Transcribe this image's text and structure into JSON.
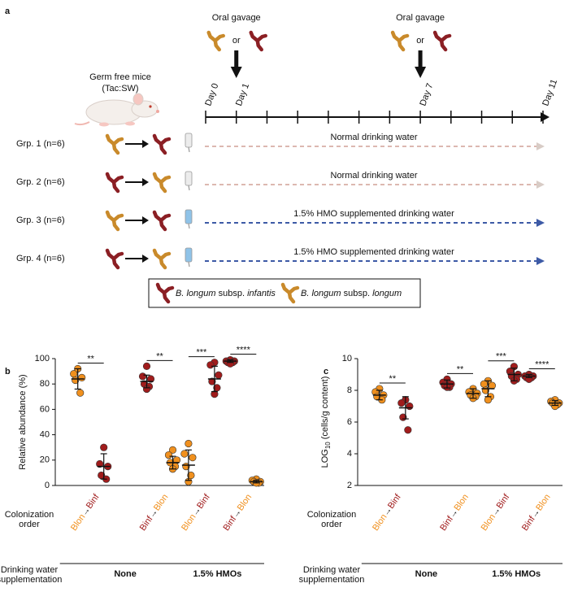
{
  "schematic": {
    "panel_label": "a",
    "colors": [
      "#c98a2b",
      "#8b1f24"
    ],
    "mouse_label": [
      "Germ free mice",
      "(Tac:SW)"
    ],
    "timeline": {
      "range": [
        0,
        11
      ],
      "ticks": [
        0,
        1,
        2,
        3,
        4,
        5,
        6,
        7,
        8,
        9,
        10,
        11
      ],
      "days": [
        {
          "value": 0,
          "label": "Day 0"
        },
        {
          "value": 1,
          "label": "Day 1"
        },
        {
          "value": 7,
          "label": "Day 7"
        },
        {
          "value": 11,
          "label": "Day 11"
        }
      ]
    },
    "gavage": [
      {
        "label": "Oral gavage",
        "or": "or",
        "day": 1
      },
      {
        "label": "Oral gavage",
        "or": "or",
        "day": 7
      }
    ],
    "groups": [
      {
        "label": "Grp. 1 (n=6)",
        "sequence": [
          "#c98a2b",
          "#8b1f24"
        ],
        "water": "Normal drinking water",
        "line_color": "#dcb8b0",
        "head_color": "#d8ccc6",
        "bottle_color": "#ececec"
      },
      {
        "label": "Grp. 2 (n=6)",
        "sequence": [
          "#8b1f24",
          "#c98a2b"
        ],
        "water": "Normal drinking water",
        "line_color": "#dcb8b0",
        "head_color": "#d8ccc6",
        "bottle_color": "#ececec"
      },
      {
        "label": "Grp. 3 (n=6)",
        "sequence": [
          "#c98a2b",
          "#8b1f24"
        ],
        "water": "1.5% HMO supplemented drinking water",
        "line_color": "#3d5aa6",
        "head_color": "#3d5aa6",
        "bottle_color": "#8fc3e8"
      },
      {
        "label": "Grp. 4 (n=6)",
        "sequence": [
          "#8b1f24",
          "#c98a2b"
        ],
        "water": "1.5% HMO supplemented drinking water",
        "line_color": "#3d5aa6",
        "head_color": "#3d5aa6",
        "bottle_color": "#8fc3e8"
      }
    ],
    "legend": [
      {
        "color": "#8b1f24",
        "text": [
          "B. longum",
          "subsp.",
          "infantis"
        ]
      },
      {
        "color": "#c98a2b",
        "text": [
          "B. longum",
          "subsp.",
          "longum"
        ]
      }
    ]
  },
  "chart_data": [
    {
      "type": "dot",
      "panel_label": "b",
      "ylabel": {
        "text": "Relative abundance (%)"
      },
      "ylim": [
        0,
        100
      ],
      "yticks": [
        0,
        20,
        40,
        60,
        80,
        100
      ],
      "rows": [
        [
          "Colonization",
          "order"
        ],
        [
          "Drinking water",
          "supplementation"
        ]
      ],
      "treatments": [
        {
          "label": "None",
          "color": "#9a9a9a",
          "groups": [
            {
              "order": [
                "Blon",
                "→",
                "Binf"
              ],
              "significance": "**",
              "columns": [
                {
                  "color": "#f0901e",
                  "values": [
                    92,
                    88,
                    85,
                    83,
                    73
                  ],
                  "mean": 84,
                  "sd": 8
                },
                {
                  "color": "#a01c1c",
                  "values": [
                    30,
                    17,
                    15,
                    8,
                    5
                  ],
                  "mean": 15,
                  "sd": 10
                }
              ]
            },
            {
              "order": [
                "Binf",
                "→",
                "Blon"
              ],
              "significance": "**",
              "columns": [
                {
                  "color": "#a01c1c",
                  "values": [
                    94,
                    86,
                    84,
                    80,
                    78,
                    76
                  ],
                  "mean": 82,
                  "sd": 5
                },
                {
                  "color": "#f0901e",
                  "values": [
                    28,
                    24,
                    20,
                    18,
                    15,
                    13
                  ],
                  "mean": 18,
                  "sd": 5
                }
              ]
            }
          ]
        },
        {
          "label": "1.5% HMOs",
          "color": "#7b7fe8",
          "groups": [
            {
              "order": [
                "Blon",
                "→",
                "Binf"
              ],
              "significance": "***",
              "columns": [
                {
                  "color": "#f0901e",
                  "values": [
                    33,
                    25,
                    22,
                    15,
                    8,
                    3
                  ],
                  "mean": 16,
                  "sd": 12
                },
                {
                  "color": "#a01c1c",
                  "values": [
                    97,
                    95,
                    87,
                    82,
                    77,
                    72
                  ],
                  "mean": 84,
                  "sd": 10
                }
              ]
            },
            {
              "order": [
                "Binf",
                "→",
                "Blon"
              ],
              "significance": "****",
              "columns": [
                {
                  "color": "#a01c1c",
                  "values": [
                    99,
                    98,
                    98,
                    97,
                    97,
                    96
                  ],
                  "mean": 98,
                  "sd": 1
                },
                {
                  "color": "#f0901e",
                  "values": [
                    5,
                    4,
                    3,
                    3,
                    2,
                    2
                  ],
                  "mean": 3,
                  "sd": 1
                }
              ]
            }
          ]
        }
      ]
    },
    {
      "type": "dot",
      "panel_label": "c",
      "ylabel": {
        "text": "LOG",
        "subscript": "10",
        "rest": "(cells/g content)"
      },
      "ylim": [
        2,
        10
      ],
      "yticks": [
        2,
        4,
        6,
        8,
        10
      ],
      "rows": [
        [
          "Colonization",
          "order"
        ],
        [
          "Drinking water",
          "supplementation"
        ]
      ],
      "treatments": [
        {
          "label": "None",
          "color": "#9a9a9a",
          "groups": [
            {
              "order": [
                "Blon",
                "→",
                "Binf"
              ],
              "significance": "**",
              "columns": [
                {
                  "color": "#f0901e",
                  "values": [
                    8.1,
                    7.9,
                    7.7,
                    7.6,
                    7.4
                  ],
                  "mean": 7.7,
                  "sd": 0.3
                },
                {
                  "color": "#a01c1c",
                  "values": [
                    7.4,
                    7.2,
                    7.0,
                    6.3,
                    5.5
                  ],
                  "mean": 6.9,
                  "sd": 0.7
                }
              ]
            },
            {
              "order": [
                "Binf",
                "→",
                "Blon"
              ],
              "significance": "**",
              "columns": [
                {
                  "color": "#a01c1c",
                  "values": [
                    8.7,
                    8.5,
                    8.4,
                    8.3,
                    8.2,
                    8.2
                  ],
                  "mean": 8.4,
                  "sd": 0.25
                },
                {
                  "color": "#f0901e",
                  "values": [
                    8.1,
                    7.9,
                    7.8,
                    7.7,
                    7.6,
                    7.5
                  ],
                  "mean": 7.8,
                  "sd": 0.3
                }
              ]
            }
          ]
        },
        {
          "label": "1.5% HMOs",
          "color": "#7b7fe8",
          "groups": [
            {
              "order": [
                "Blon",
                "→",
                "Binf"
              ],
              "significance": "***",
              "columns": [
                {
                  "color": "#f0901e",
                  "values": [
                    8.6,
                    8.4,
                    8.3,
                    8.0,
                    7.6,
                    7.4
                  ],
                  "mean": 8.1,
                  "sd": 0.5
                },
                {
                  "color": "#a01c1c",
                  "values": [
                    9.5,
                    9.2,
                    9.0,
                    8.9,
                    8.7,
                    8.6
                  ],
                  "mean": 9.0,
                  "sd": 0.4
                }
              ]
            },
            {
              "order": [
                "Binf",
                "→",
                "Blon"
              ],
              "significance": "****",
              "columns": [
                {
                  "color": "#a01c1c",
                  "values": [
                    9.0,
                    8.9,
                    8.9,
                    8.8,
                    8.8,
                    8.7
                  ],
                  "mean": 8.9,
                  "sd": 0.1
                },
                {
                  "color": "#f0901e",
                  "values": [
                    7.4,
                    7.3,
                    7.2,
                    7.2,
                    7.1,
                    7.0
                  ],
                  "mean": 7.2,
                  "sd": 0.15
                }
              ]
            }
          ]
        }
      ]
    }
  ]
}
